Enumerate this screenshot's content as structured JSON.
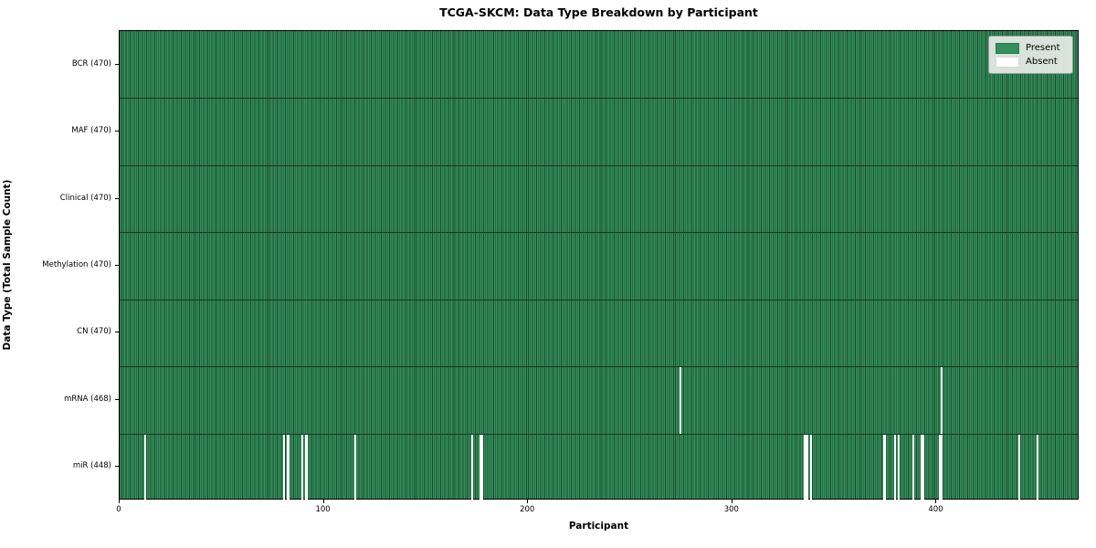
{
  "title": "TCGA-SKCM: Data Type Breakdown by Participant",
  "xlabel": "Participant",
  "ylabel": "Data Type (Total Sample Count)",
  "legend": {
    "present_label": "Present",
    "absent_label": "Absent"
  },
  "colors": {
    "present": "#338f5c",
    "present_edge": "#1c4b2f",
    "absent": "#ffffff",
    "row_separator": "#17361f",
    "legend_background": "#ebeeea",
    "legend_border": "#9a9a9a"
  },
  "chart_data": {
    "type": "heatmap",
    "title": "TCGA-SKCM: Data Type Breakdown by Participant",
    "xlabel": "Participant",
    "ylabel": "Data Type (Total Sample Count)",
    "legend_entries": [
      {
        "label": "Present",
        "color": "#338f5c"
      },
      {
        "label": "Absent",
        "color": "#ffffff"
      }
    ],
    "legend_position": "upper right",
    "n_participants": 470,
    "xlim": [
      0,
      470
    ],
    "xticks": [
      0,
      100,
      200,
      300,
      400
    ],
    "grid": false,
    "rows": [
      {
        "label": "BCR (470)",
        "present_count": 470,
        "absent_participants": []
      },
      {
        "label": "MAF (470)",
        "present_count": 470,
        "absent_participants": []
      },
      {
        "label": "Clinical (470)",
        "present_count": 470,
        "absent_participants": []
      },
      {
        "label": "Methylation (470)",
        "present_count": 470,
        "absent_participants": []
      },
      {
        "label": "CN (470)",
        "present_count": 470,
        "absent_participants": []
      },
      {
        "label": "mRNA (468)",
        "present_count": 468,
        "absent_participants": [
          274,
          402
        ]
      },
      {
        "label": "miR (448)",
        "present_count": 448,
        "absent_participants": [
          12,
          80,
          82,
          89,
          91,
          115,
          172,
          176,
          177,
          335,
          336,
          338,
          374,
          379,
          381,
          388,
          392,
          393,
          401,
          402,
          440,
          449
        ]
      }
    ]
  }
}
